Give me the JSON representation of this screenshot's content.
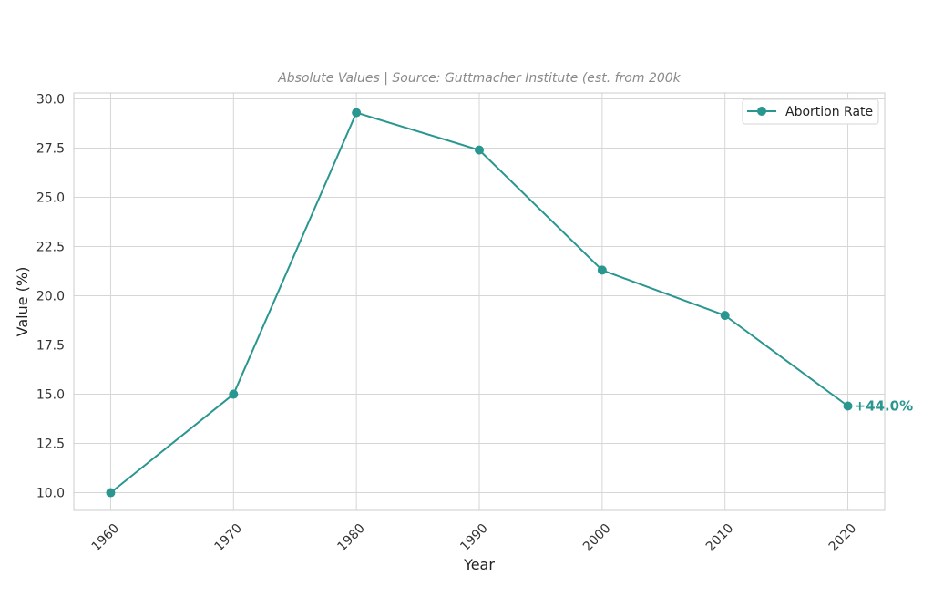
{
  "chart_data": {
    "type": "line",
    "title": "",
    "subtitle": "Absolute Values | Source: Guttmacher Institute (est. from 200k",
    "xlabel": "Year",
    "ylabel": "Value (%)",
    "x": [
      1960,
      1970,
      1980,
      1990,
      2000,
      2010,
      2020
    ],
    "x_tick_labels": [
      "1960",
      "1970",
      "1980",
      "1990",
      "2000",
      "2010",
      "2020"
    ],
    "y_ticks": [
      10.0,
      12.5,
      15.0,
      17.5,
      20.0,
      22.5,
      25.0,
      27.5,
      30.0
    ],
    "y_tick_labels": [
      "10.0",
      "12.5",
      "15.0",
      "17.5",
      "20.0",
      "22.5",
      "25.0",
      "27.5",
      "30.0"
    ],
    "xlim": [
      1957,
      2023
    ],
    "ylim": [
      9.1,
      30.3
    ],
    "grid": true,
    "legend_position": "top-right",
    "series": [
      {
        "name": "Abortion Rate",
        "values": [
          10.0,
          15.0,
          29.3,
          27.4,
          21.3,
          19.0,
          14.4
        ],
        "color": "#2a9690"
      }
    ],
    "annotation": {
      "text": "+44.0%",
      "x": 2020,
      "y": 14.4,
      "color": "#2a9690"
    }
  }
}
